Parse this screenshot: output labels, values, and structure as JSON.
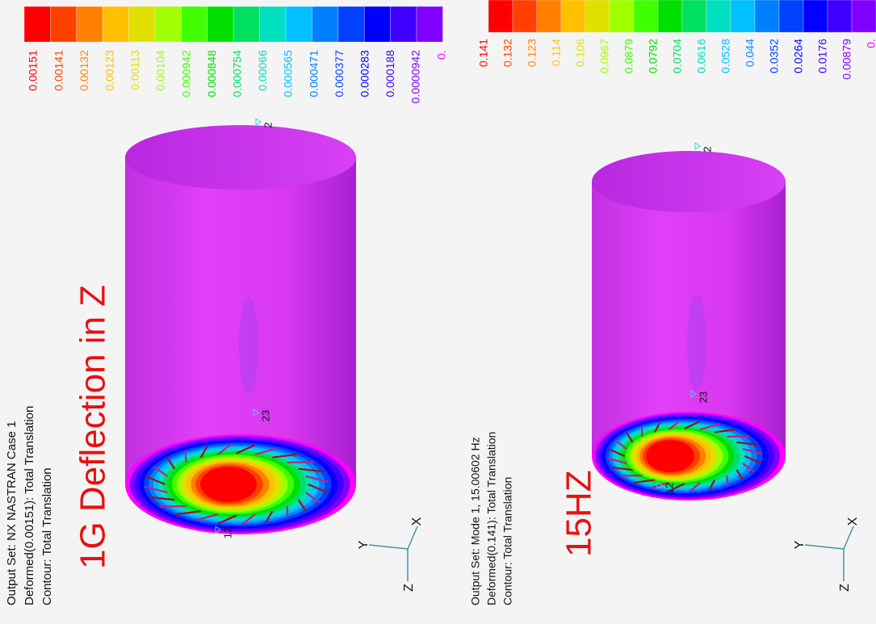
{
  "panels": [
    {
      "output_lines": [
        "Output Set: NX NASTRAN Case 1",
        "Deformed(0.00151): Total Translation",
        "Contour: Total Translation"
      ],
      "title": "1G Deflection in Z",
      "legend": {
        "labels": [
          "0.00151",
          "0.00141",
          "0.00132",
          "0.00123",
          "0.00113",
          "0.00104",
          "0.000942",
          "0.000848",
          "0.000754",
          "0.00066",
          "0.000565",
          "0.000471",
          "0.000377",
          "0.000283",
          "0.000188",
          "0.0000942",
          "0."
        ],
        "colors": [
          "#ff0000",
          "#ff4000",
          "#ff8000",
          "#ffc000",
          "#e0e000",
          "#a0ff00",
          "#40ff00",
          "#00e000",
          "#00e060",
          "#00e0c0",
          "#00c0ff",
          "#0080ff",
          "#0040ff",
          "#0000ff",
          "#4000ff",
          "#8000ff",
          "#ff00ff"
        ]
      },
      "nodes": [
        "2",
        "23",
        "12"
      ],
      "axes": [
        "X",
        "Y",
        "Z"
      ]
    },
    {
      "output_lines": [
        "Output Set: Mode 1, 15.00602 Hz",
        "Deformed(0.141): Total Translation",
        "Contour: Total Translation"
      ],
      "title": "15HZ",
      "legend": {
        "labels": [
          "0.141",
          "0.132",
          "0.123",
          "0.114",
          "0.106",
          "0.0967",
          "0.0879",
          "0.0792",
          "0.0704",
          "0.0616",
          "0.0528",
          "0.044",
          "0.0352",
          "0.0264",
          "0.0176",
          "0.00879",
          "0."
        ],
        "colors": [
          "#ff0000",
          "#ff4000",
          "#ff8000",
          "#ffc000",
          "#e0e000",
          "#a0ff00",
          "#40ff00",
          "#00e000",
          "#00e060",
          "#00e0c0",
          "#00c0ff",
          "#0080ff",
          "#0040ff",
          "#0000ff",
          "#4000ff",
          "#8000ff",
          "#ff00ff"
        ]
      },
      "nodes": [
        "2",
        "23",
        "12"
      ],
      "axes": [
        "X",
        "Y",
        "Z"
      ]
    }
  ]
}
